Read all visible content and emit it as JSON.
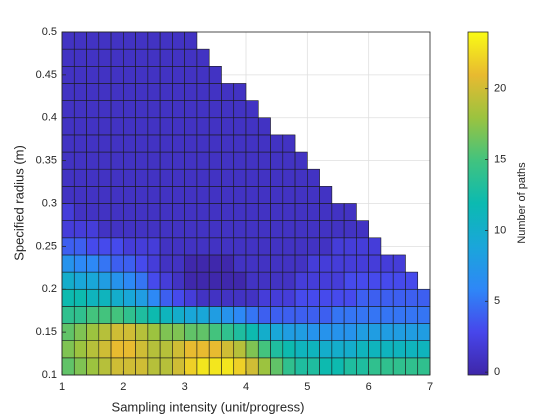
{
  "chart_data": {
    "type": "heatmap",
    "xlabel": "Sampling intensity (unit/progress)",
    "ylabel": "Specified radius (m)",
    "colorbar_label": "Number of paths",
    "xlim": [
      1,
      7
    ],
    "ylim": [
      0.1,
      0.5
    ],
    "xticks": [
      1,
      2,
      3,
      4,
      5,
      6,
      7
    ],
    "yticks": [
      0.1,
      0.15,
      0.2,
      0.25,
      0.3,
      0.35,
      0.4,
      0.45,
      0.5
    ],
    "clim": [
      -0.2,
      24
    ],
    "cticks": [
      0,
      5,
      10,
      15,
      20
    ],
    "grid": true,
    "colormap": [
      "#3e26a8",
      "#4746eb",
      "#2e87f7",
      "#1aa6da",
      "#0bbab1",
      "#41c37f",
      "#9bc33f",
      "#e8ba30",
      "#f9fb15"
    ],
    "x": [
      1.1,
      1.3,
      1.5,
      1.7,
      1.9,
      2.1,
      2.3,
      2.5,
      2.7,
      2.9,
      3.1,
      3.3,
      3.5,
      3.7,
      3.9,
      4.1,
      4.3,
      4.5,
      4.7,
      4.9,
      5.1,
      5.3,
      5.5,
      5.7,
      5.9,
      6.1,
      6.3,
      6.5,
      6.7,
      6.9
    ],
    "y": [
      0.11,
      0.13,
      0.15,
      0.17,
      0.19,
      0.21,
      0.23,
      0.25,
      0.27,
      0.29,
      0.31,
      0.33,
      0.35,
      0.37,
      0.39,
      0.41,
      0.43,
      0.45,
      0.47,
      0.49
    ],
    "z": [
      [
        16,
        17,
        18,
        19,
        20,
        20,
        20,
        19,
        19,
        20,
        22,
        23,
        23,
        23,
        22,
        20,
        18,
        16,
        14,
        13,
        13,
        12,
        12,
        13,
        13,
        14,
        14,
        14,
        14,
        14
      ],
      [
        17,
        18,
        19,
        20,
        21,
        21,
        20,
        19,
        19,
        20,
        21,
        21,
        21,
        20,
        19,
        17,
        15,
        13,
        12,
        11,
        11,
        10,
        10,
        10,
        11,
        11,
        11,
        11,
        11,
        11
      ],
      [
        16,
        17,
        18,
        19,
        20,
        20,
        19,
        18,
        17,
        17,
        16,
        16,
        15,
        14,
        13,
        12,
        10,
        9,
        8,
        8,
        7,
        7,
        7,
        7,
        8,
        8,
        8,
        8,
        8,
        8
      ],
      [
        14,
        14,
        15,
        15,
        15,
        14,
        13,
        12,
        11,
        10,
        9,
        9,
        8,
        7,
        6,
        5,
        4,
        4,
        4,
        4,
        4,
        4,
        5,
        5,
        5,
        5,
        5,
        5,
        5,
        5
      ],
      [
        12,
        12,
        11,
        11,
        10,
        9,
        8,
        6,
        4,
        3,
        2,
        1,
        1,
        1,
        1,
        1,
        2,
        2,
        2,
        3,
        3,
        3,
        3,
        3,
        4,
        4,
        4,
        4,
        4,
        4
      ],
      [
        10,
        9,
        9,
        8,
        7,
        6,
        5,
        3,
        2,
        1,
        0,
        0,
        0,
        0,
        0,
        1,
        1,
        1,
        1,
        2,
        2,
        2,
        2,
        3,
        3,
        3,
        3,
        3,
        3,
        null
      ],
      [
        7,
        6,
        6,
        5,
        4,
        4,
        3,
        2,
        1,
        1,
        0,
        0,
        0,
        0,
        1,
        1,
        1,
        1,
        1,
        1,
        2,
        2,
        2,
        2,
        2,
        2,
        2,
        2,
        null,
        null
      ],
      [
        4,
        4,
        3,
        3,
        3,
        2,
        2,
        2,
        1,
        1,
        1,
        1,
        1,
        1,
        1,
        1,
        1,
        1,
        1,
        1,
        1,
        1,
        2,
        2,
        2,
        2,
        null,
        null,
        null,
        null
      ],
      [
        2,
        2,
        2,
        1,
        1,
        1,
        1,
        1,
        1,
        1,
        1,
        1,
        1,
        1,
        1,
        1,
        1,
        1,
        1,
        1,
        1,
        1,
        1,
        1,
        1,
        null,
        null,
        null,
        null,
        null
      ],
      [
        2,
        1,
        1,
        1,
        1,
        1,
        1,
        1,
        1,
        1,
        1,
        1,
        1,
        1,
        1,
        1,
        1,
        1,
        1,
        1,
        1,
        1,
        1,
        1,
        null,
        null,
        null,
        null,
        null,
        null
      ],
      [
        1,
        1,
        1,
        1,
        1,
        1,
        1,
        1,
        1,
        1,
        1,
        1,
        1,
        1,
        1,
        1,
        1,
        1,
        1,
        1,
        1,
        1,
        null,
        null,
        null,
        null,
        null,
        null,
        null,
        null
      ],
      [
        1,
        1,
        1,
        1,
        1,
        1,
        1,
        1,
        1,
        1,
        1,
        1,
        1,
        1,
        1,
        1,
        1,
        1,
        1,
        1,
        1,
        null,
        null,
        null,
        null,
        null,
        null,
        null,
        null,
        null
      ],
      [
        1,
        1,
        1,
        1,
        1,
        1,
        1,
        1,
        1,
        1,
        1,
        1,
        1,
        1,
        1,
        1,
        1,
        1,
        1,
        1,
        null,
        null,
        null,
        null,
        null,
        null,
        null,
        null,
        null,
        null
      ],
      [
        1,
        1,
        1,
        1,
        1,
        1,
        1,
        1,
        1,
        1,
        1,
        1,
        1,
        1,
        1,
        1,
        1,
        1,
        1,
        null,
        null,
        null,
        null,
        null,
        null,
        null,
        null,
        null,
        null,
        null
      ],
      [
        1,
        1,
        1,
        1,
        1,
        1,
        1,
        1,
        1,
        1,
        1,
        1,
        1,
        1,
        1,
        1,
        1,
        null,
        null,
        null,
        null,
        null,
        null,
        null,
        null,
        null,
        null,
        null,
        null,
        null
      ],
      [
        1,
        1,
        1,
        1,
        1,
        1,
        1,
        1,
        1,
        1,
        1,
        1,
        1,
        1,
        1,
        1,
        null,
        null,
        null,
        null,
        null,
        null,
        null,
        null,
        null,
        null,
        null,
        null,
        null,
        null
      ],
      [
        1,
        1,
        1,
        1,
        1,
        1,
        1,
        1,
        1,
        1,
        1,
        1,
        1,
        1,
        1,
        null,
        null,
        null,
        null,
        null,
        null,
        null,
        null,
        null,
        null,
        null,
        null,
        null,
        null,
        null
      ],
      [
        1,
        1,
        1,
        1,
        1,
        1,
        1,
        1,
        1,
        1,
        1,
        1,
        1,
        null,
        null,
        null,
        null,
        null,
        null,
        null,
        null,
        null,
        null,
        null,
        null,
        null,
        null,
        null,
        null,
        null
      ],
      [
        1,
        1,
        1,
        1,
        1,
        1,
        1,
        1,
        1,
        1,
        1,
        1,
        null,
        null,
        null,
        null,
        null,
        null,
        null,
        null,
        null,
        null,
        null,
        null,
        null,
        null,
        null,
        null,
        null,
        null
      ],
      [
        1,
        1,
        1,
        1,
        1,
        1,
        1,
        1,
        1,
        1,
        1,
        null,
        null,
        null,
        null,
        null,
        null,
        null,
        null,
        null,
        null,
        null,
        null,
        null,
        null,
        null,
        null,
        null,
        null,
        null
      ]
    ]
  }
}
